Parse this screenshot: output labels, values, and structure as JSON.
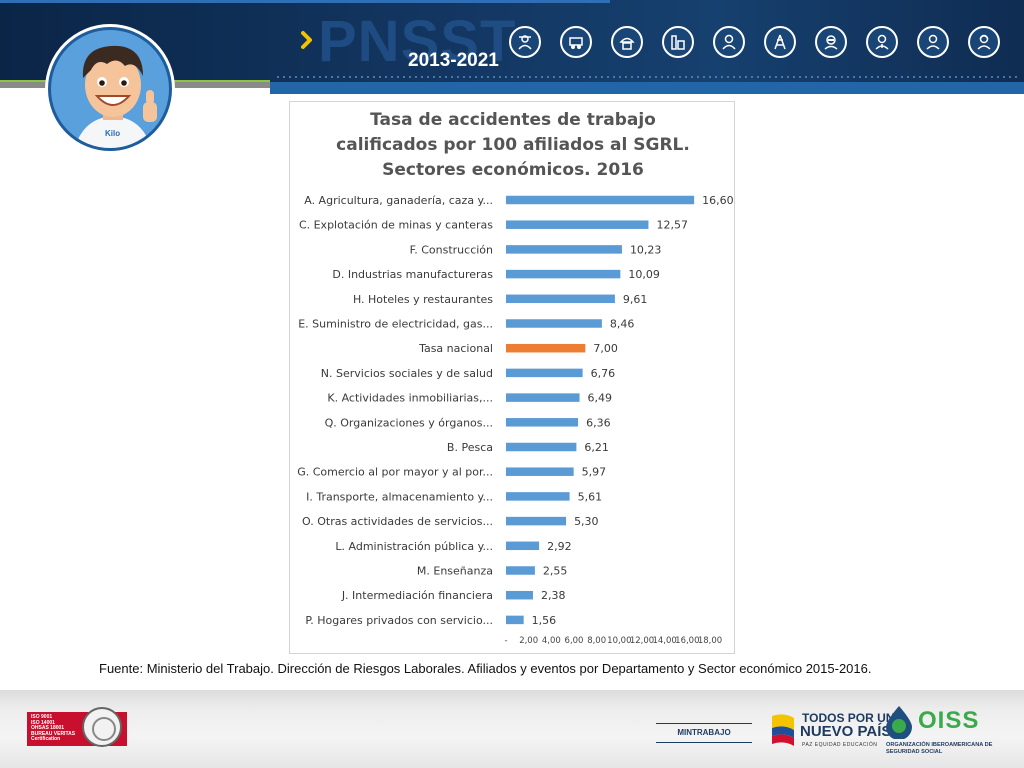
{
  "header": {
    "brand": "PNSST",
    "years": "2013-2021",
    "icons": [
      "farmer-icon",
      "mining-vehicle-icon",
      "construction-worker-icon",
      "factory-icon",
      "industrial-worker-icon",
      "electrical-tower-icon",
      "welder-icon",
      "healthcare-worker-icon",
      "office-worker-icon",
      "support-worker-icon"
    ]
  },
  "avatar": {
    "shirt_text": "Kilo"
  },
  "chart": {
    "title_lines": [
      "Tasa de accidentes de trabajo",
      "calificados por 100 afiliados al SGRL.",
      "Sectores económicos. 2016"
    ]
  },
  "chart_data": {
    "type": "bar",
    "orientation": "horizontal",
    "title": "Tasa de accidentes de trabajo calificados por 100 afiliados al SGRL. Sectores económicos. 2016",
    "categories": [
      "A. Agricultura, ganadería, caza y...",
      "C. Explotación de minas y canteras",
      "F. Construcción",
      "D. Industrias manufactureras",
      "H. Hoteles y restaurantes",
      "E. Suministro de electricidad, gas...",
      "Tasa nacional",
      "N. Servicios sociales y de salud",
      "K. Actividades inmobiliarias,...",
      "Q. Organizaciones y órganos...",
      "B. Pesca",
      "G. Comercio al por mayor y al por...",
      "I. Transporte, almacenamiento y...",
      "O. Otras actividades de servicios...",
      "L. Administración pública y...",
      "M. Enseñanza",
      "J. Intermediación financiera",
      "P. Hogares privados con servicio..."
    ],
    "values": [
      16.6,
      12.57,
      10.23,
      10.09,
      9.61,
      8.46,
      7.0,
      6.76,
      6.49,
      6.36,
      6.21,
      5.97,
      5.61,
      5.3,
      2.92,
      2.55,
      2.38,
      1.56
    ],
    "value_labels": [
      "16,60",
      "12,57",
      "10,23",
      "10,09",
      "9,61",
      "8,46",
      "7,00",
      "6,76",
      "6,49",
      "6,36",
      "6,21",
      "5,97",
      "5,61",
      "5,30",
      "2,92",
      "2,55",
      "2,38",
      "1,56"
    ],
    "highlight_category": "Tasa nacional",
    "colors": {
      "bar": "#5b9bd5",
      "highlight": "#ed7d31"
    },
    "xlim": [
      0,
      18
    ],
    "x_ticks": [
      "-",
      "2,00",
      "4,00",
      "6,00",
      "8,00",
      "10,00",
      "12,00",
      "14,00",
      "16,00",
      "18,00"
    ],
    "x_tick_values": [
      0,
      2,
      4,
      6,
      8,
      10,
      12,
      14,
      16,
      18
    ],
    "grid": false,
    "legend": "none"
  },
  "source": "Fuente: Ministerio del Trabajo. Dirección de Riesgos Laborales. Afiliados y eventos por Departamento y Sector económico 2015-2016.",
  "footer": {
    "certification_lines": [
      "ISO 9001",
      "ISO 14001",
      "OHSAS 18001",
      "BUREAU VERITAS",
      "Certification"
    ],
    "mintrabajo": "MINTRABAJO",
    "todos_line1": "TODOS POR UN",
    "todos_line2": "NUEVO PAÍS",
    "todos_line3": "PAZ  EQUIDAD  EDUCACIÓN",
    "oiss": "OISS",
    "oiss_sub": "ORGANIZACIÓN IBEROAMERICANA DE SEGURIDAD SOCIAL"
  }
}
